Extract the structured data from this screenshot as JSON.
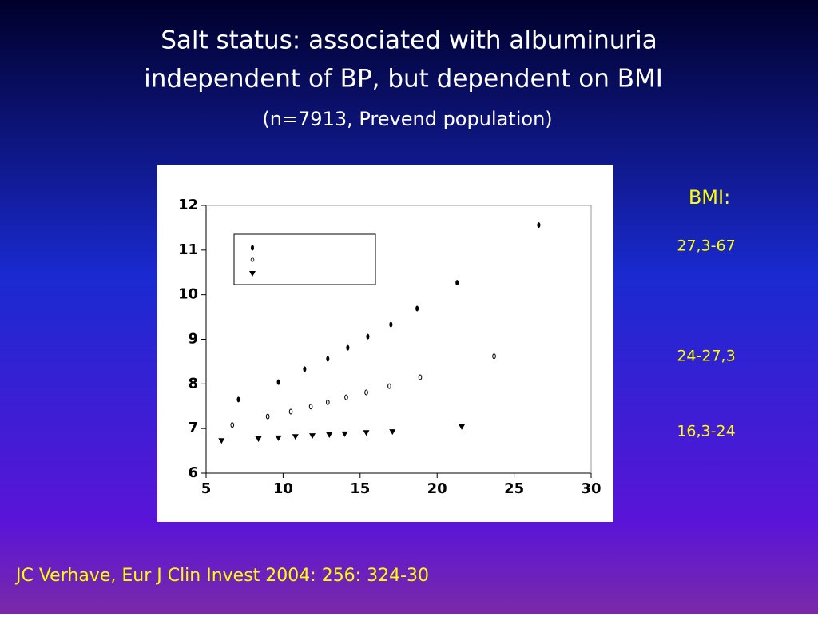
{
  "title_lines": [
    "Salt status: associated with albuminuria",
    "independent of BP, but dependent on BMI"
  ],
  "subtitle": "(n=7913, Prevend population)",
  "legend_heading": "BMI:",
  "citation": "JC Verhave, Eur J Clin Invest 2004: 256: 324-30",
  "chart_data": {
    "type": "scatter",
    "xlim": [
      5,
      30
    ],
    "xticks": [
      5,
      10,
      15,
      20,
      25,
      30
    ],
    "ylim": [
      6,
      12
    ],
    "yticks": [
      6,
      7,
      8,
      9,
      10,
      11,
      12
    ],
    "series": [
      {
        "name": "27,3-67",
        "color": "#000000",
        "marker": "ellipse",
        "x": [
          7.1,
          9.7,
          11.4,
          12.9,
          14.2,
          15.5,
          17.0,
          18.7,
          21.3,
          26.6
        ],
        "values": [
          7.65,
          8.04,
          8.33,
          8.56,
          8.81,
          9.06,
          9.33,
          9.69,
          10.27,
          11.56
        ]
      },
      {
        "name": "24-27,3",
        "color": "#000000",
        "marker": "open",
        "x": [
          6.7,
          9.0,
          10.5,
          11.8,
          12.9,
          14.1,
          15.4,
          16.9,
          18.9,
          23.7
        ],
        "values": [
          7.08,
          7.27,
          7.38,
          7.49,
          7.59,
          7.7,
          7.81,
          7.95,
          8.15,
          8.62
        ]
      },
      {
        "name": "16,3-24",
        "color": "#000000",
        "marker": "triangle",
        "x": [
          6.0,
          8.4,
          9.7,
          10.8,
          11.9,
          13.0,
          14.0,
          15.4,
          17.1,
          21.6
        ],
        "values": [
          6.73,
          6.77,
          6.79,
          6.82,
          6.84,
          6.86,
          6.88,
          6.91,
          6.93,
          7.04
        ]
      }
    ]
  }
}
